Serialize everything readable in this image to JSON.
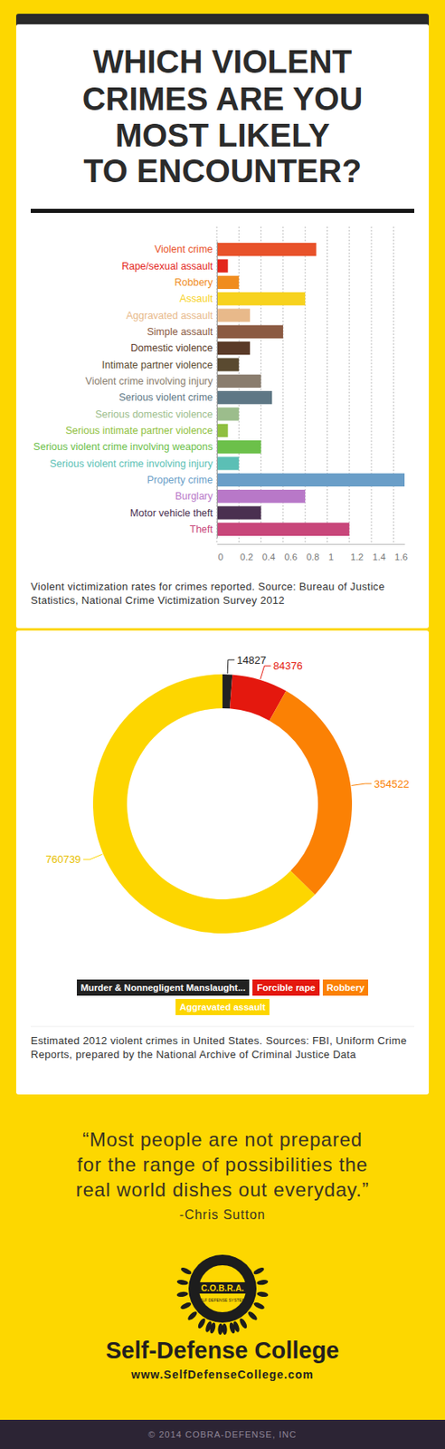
{
  "header": {
    "title": [
      "WHICH VIOLENT",
      "CRIMES ARE YOU",
      "MOST LIKELY",
      "TO ENCOUNTER?"
    ]
  },
  "chart_data": [
    {
      "type": "bar",
      "orientation": "horizontal",
      "categories": [
        "Violent crime",
        "Rape/sexual assault",
        "Robbery",
        "Assault",
        "Aggravated assault",
        "Simple assault",
        "Domestic violence",
        "Intimate partner violence",
        "Violent crime involving injury",
        "Serious violent crime",
        "Serious domestic violence",
        "Serious intimate partner violence",
        "Serious violent crime involving weapons",
        "Serious violent crime involving injury",
        "Property crime",
        "Burglary",
        "Motor vehicle theft",
        "Theft"
      ],
      "values": [
        0.9,
        0.1,
        0.2,
        0.8,
        0.3,
        0.6,
        0.3,
        0.2,
        0.4,
        0.5,
        0.2,
        0.1,
        0.4,
        0.2,
        1.7,
        0.8,
        0.4,
        1.2
      ],
      "colors": [
        "#e8522a",
        "#e3261c",
        "#f08c1e",
        "#f7d21e",
        "#e8b98a",
        "#8b5a42",
        "#5a3a28",
        "#5a4a30",
        "#8a7d6e",
        "#5e7785",
        "#9cbd8c",
        "#8fbf40",
        "#6cc04a",
        "#5bbfb5",
        "#6a9ec8",
        "#b878c8",
        "#4a3050",
        "#c8467a"
      ],
      "xlim": [
        0,
        1.7
      ],
      "xticks": [
        0,
        0.2,
        0.4,
        0.6,
        0.8,
        1,
        1.2,
        1.4,
        1.6
      ],
      "grid": true,
      "caption": "Violent victimization rates for crimes reported. Source: Bureau of Justice Statistics, National Crime Victimization Survey 2012"
    },
    {
      "type": "donut",
      "categories": [
        "Murder & Nonnegligent Manslaught...",
        "Forcible rape",
        "Robbery",
        "Aggravated assault"
      ],
      "values": [
        14827,
        84376,
        354522,
        760739
      ],
      "colors": [
        "#222222",
        "#e4180e",
        "#fb8104",
        "#fdd600"
      ],
      "data_labels": true,
      "legend": "bottom",
      "caption": "Estimated 2012 violent crimes in United States. Sources: FBI, Uniform Crime Reports, prepared by the National Archive of Criminal Justice Data"
    }
  ],
  "quote": {
    "lines": [
      "“Most people are not prepared",
      "for the range of possibilities the",
      "real world dishes out everyday.”"
    ],
    "author": "-Chris Sutton"
  },
  "logo": {
    "name": "C.O.B.R.A.",
    "subtitle": "SELF DEFENSE SYSTEMS"
  },
  "footer": {
    "brand": "Self-Defense College",
    "url": "www.SelfDefenseCollege.com",
    "copyright": "© 2014 COBRA-DEFENSE, INC"
  }
}
